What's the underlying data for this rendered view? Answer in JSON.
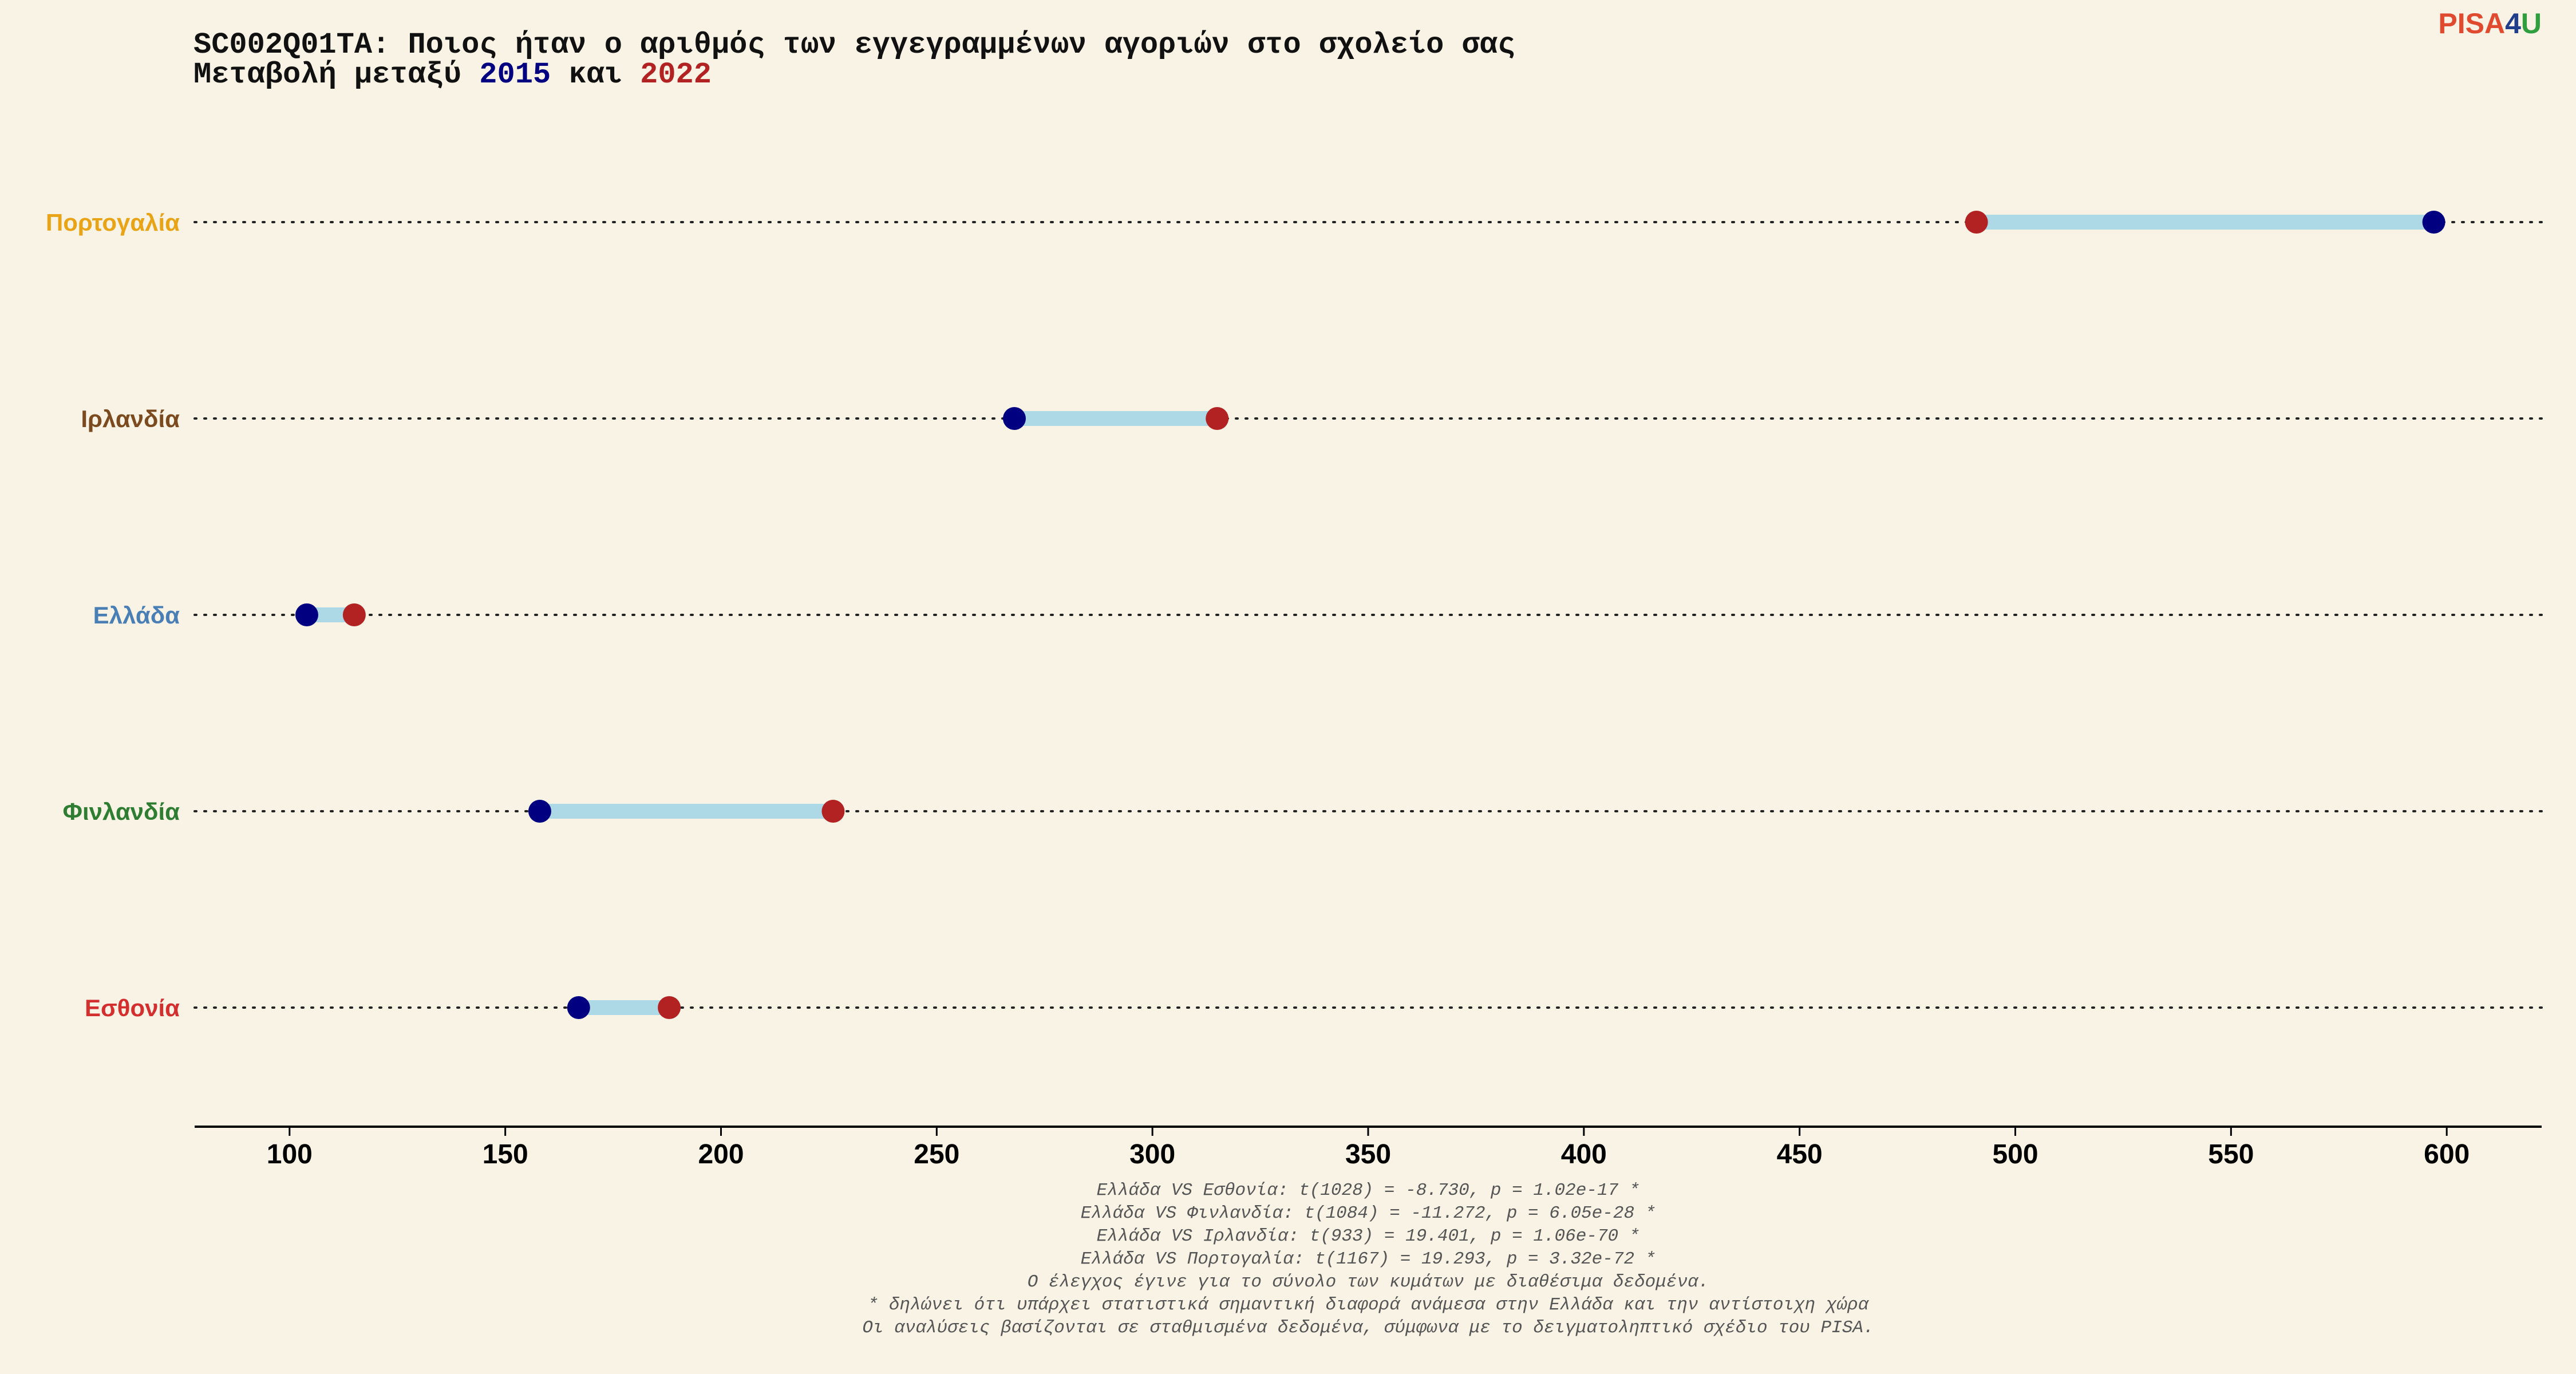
{
  "logo": {
    "part1": "PISA",
    "part2": "4",
    "part3": "U",
    "colors": [
      "#e04a2f",
      "#1f3e8c",
      "#2e9e3e"
    ]
  },
  "chart_data": {
    "type": "dumbbell",
    "title_line1": "SC002Q01TA: Ποιος ήταν ο αριθμός των εγγεγραμμένων αγοριών στο σχολείο σας",
    "title_line2": {
      "prefix": "Μεταβολή μεταξύ ",
      "year_a": "2015",
      "middle": " και ",
      "year_b": "2022"
    },
    "xlim": [
      78,
      622
    ],
    "x_ticks": [
      "100",
      "150",
      "200",
      "250",
      "300",
      "350",
      "400",
      "450",
      "500",
      "550",
      "600"
    ],
    "grid": false,
    "colors": {
      "series_2015": "#000080",
      "series_2022": "#b22222",
      "bar": "#add8e6",
      "background": "#f8f3e5"
    },
    "categories": [
      {
        "label": "Πορτογαλία",
        "color": "#e8a317",
        "v2015": 597,
        "v2022": 491
      },
      {
        "label": "Ιρλανδία",
        "color": "#7b4a1e",
        "v2015": 268,
        "v2022": 315
      },
      {
        "label": "Ελλάδα",
        "color": "#4a7fb5",
        "v2015": 104,
        "v2022": 115
      },
      {
        "label": "Φινλανδία",
        "color": "#2e7d32",
        "v2015": 158,
        "v2022": 226
      },
      {
        "label": "Εσθονία",
        "color": "#d32f2f",
        "v2015": 167,
        "v2022": 188
      }
    ],
    "notes": [
      "Ελλάδα VS Εσθονία: t(1028) = -8.730, p = 1.02e-17 *",
      "Ελλάδα VS Φινλανδία: t(1084) = -11.272, p = 6.05e-28 *",
      "Ελλάδα VS Ιρλανδία: t(933) = 19.401, p = 1.06e-70 *",
      "Ελλάδα VS Πορτογαλία: t(1167) = 19.293, p = 3.32e-72 *",
      "Ο έλεγχος έγινε για το σύνολο των κυμάτων με διαθέσιμα δεδομένα.",
      "* δηλώνει ότι υπάρχει στατιστικά σημαντική διαφορά ανάμεσα στην Ελλάδα και την αντίστοιχη χώρα",
      "Οι αναλύσεις βασίζονται σε σταθμισμένα δεδομένα, σύμφωνα με το δειγματοληπτικό σχέδιο του PISA."
    ]
  }
}
